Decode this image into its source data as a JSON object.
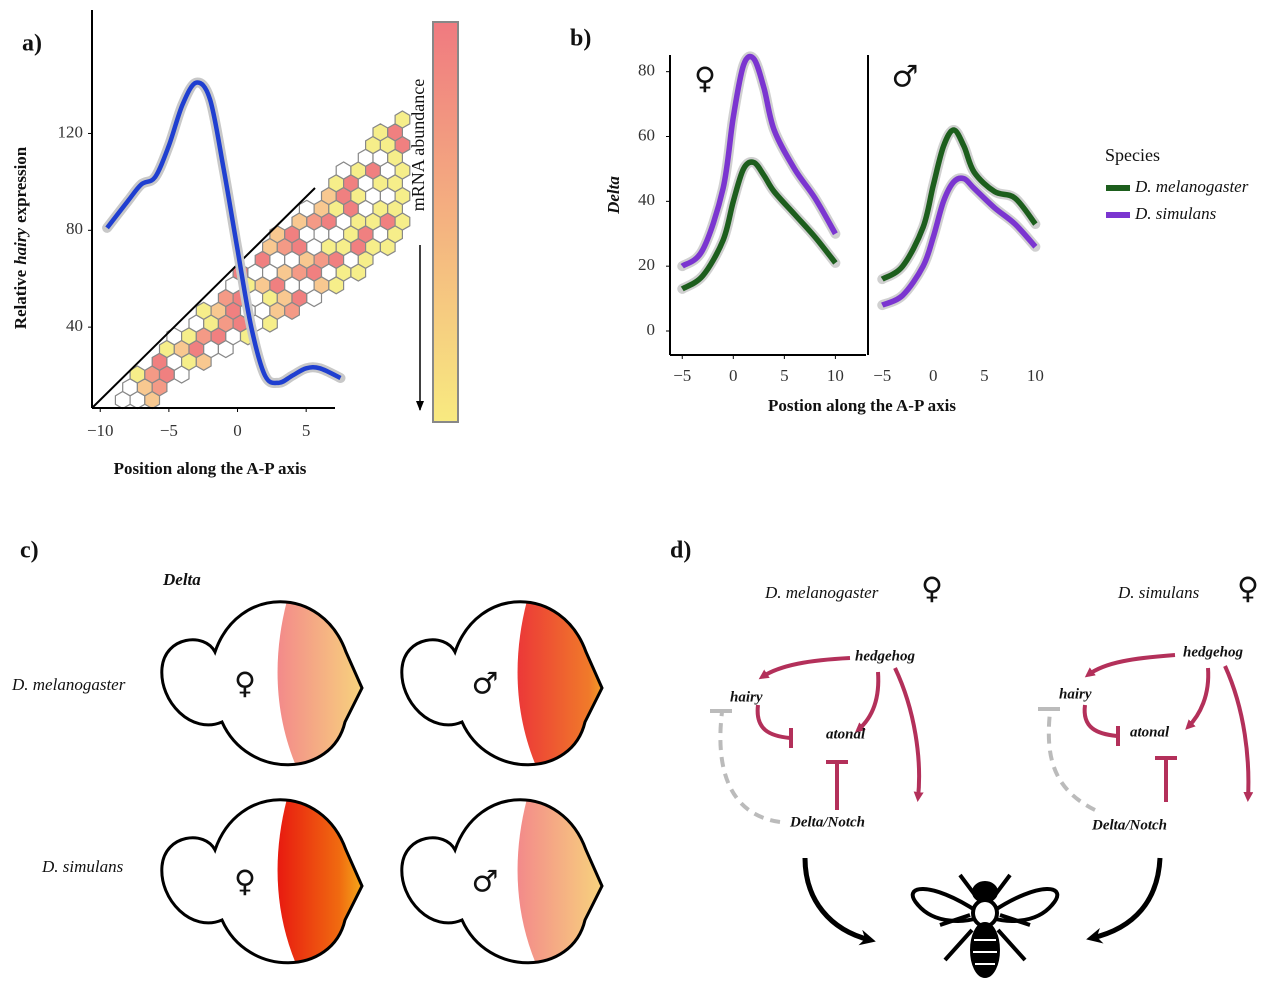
{
  "panels": [
    "a)",
    "b)",
    "c)",
    "d)"
  ],
  "chart_data": [
    {
      "type": "line",
      "xlabel": "Position along the A-P axis",
      "ylabel": [
        "Relative",
        "hairy",
        "expression"
      ],
      "colorbar_label": "mRNA abundance",
      "xlim": [
        -10.6,
        7.1
      ],
      "ylim": [
        6.6,
        171
      ],
      "xticks": [
        {
          "value": -10,
          "label": "−10"
        },
        {
          "value": -5,
          "label": "−5"
        },
        0,
        5
      ],
      "yticks": [
        40,
        80,
        120
      ],
      "series": [
        {
          "color": "#1f3fd0",
          "x": [
            -9.5,
            -8,
            -7,
            -6,
            -5,
            -4,
            -3,
            -2,
            -1,
            0,
            1,
            2,
            3,
            4,
            5,
            6,
            7.5
          ],
          "values": [
            81,
            92,
            99,
            102,
            115,
            132,
            141,
            134,
            105,
            72,
            40,
            20,
            17,
            20,
            23,
            23,
            19
          ]
        }
      ]
    },
    {
      "type": "line",
      "xlabel": "Postion along the A-P axis",
      "ylabel": "Delta",
      "facets": [
        "♀",
        "♂"
      ],
      "legend_title": "Species",
      "xlim": [
        -6.2,
        12.9
      ],
      "ylim": [
        -7.4,
        87.3
      ],
      "xticks": [
        {
          "value": -5,
          "label": "−5"
        },
        0,
        5,
        10
      ],
      "yticks": [
        0,
        20,
        40,
        60,
        80
      ],
      "series": [
        {
          "name": "D. melanogaster",
          "color": "#1d5e1d",
          "facets": [
            {
              "x": [
                -5,
                -3,
                -1,
                0,
                1,
                2,
                3,
                4,
                6,
                8,
                10
              ],
              "values": [
                13,
                17,
                28,
                40,
                50,
                52,
                48,
                43,
                36,
                29,
                21
              ]
            },
            {
              "x": [
                -5,
                -3,
                -1,
                0,
                1,
                2,
                3,
                4,
                6,
                8,
                10
              ],
              "values": [
                16,
                20,
                32,
                45,
                57,
                62,
                57,
                49,
                43,
                41,
                33
              ]
            }
          ]
        },
        {
          "name": "D. simulans",
          "color": "#7b35d0",
          "facets": [
            {
              "x": [
                -5,
                -3,
                -1,
                0,
                1,
                2,
                3,
                4,
                6,
                8,
                10
              ],
              "values": [
                20,
                25,
                44,
                66,
                82,
                84,
                75,
                62,
                50,
                41,
                30
              ]
            },
            {
              "x": [
                -5,
                -3,
                -1,
                0,
                1,
                2,
                3,
                4,
                6,
                8,
                10
              ],
              "values": [
                8,
                11,
                20,
                29,
                40,
                46,
                47,
                44,
                38,
                33,
                26
              ]
            }
          ]
        }
      ]
    }
  ],
  "eyes": {
    "title": "Delta",
    "rows": [
      "D. melanogaster",
      "D. simulans"
    ],
    "sexes": [
      "♀",
      "♂"
    ]
  },
  "networks": [
    {
      "species": "D. melanogaster",
      "sex": "♀",
      "nodes": [
        "hedgehog",
        "hairy",
        "atonal",
        "Delta/Notch"
      ]
    },
    {
      "species": "D. simulans",
      "sex": "♀",
      "nodes": [
        "hedgehog",
        "hairy",
        "atonal",
        "Delta/Notch"
      ]
    }
  ]
}
